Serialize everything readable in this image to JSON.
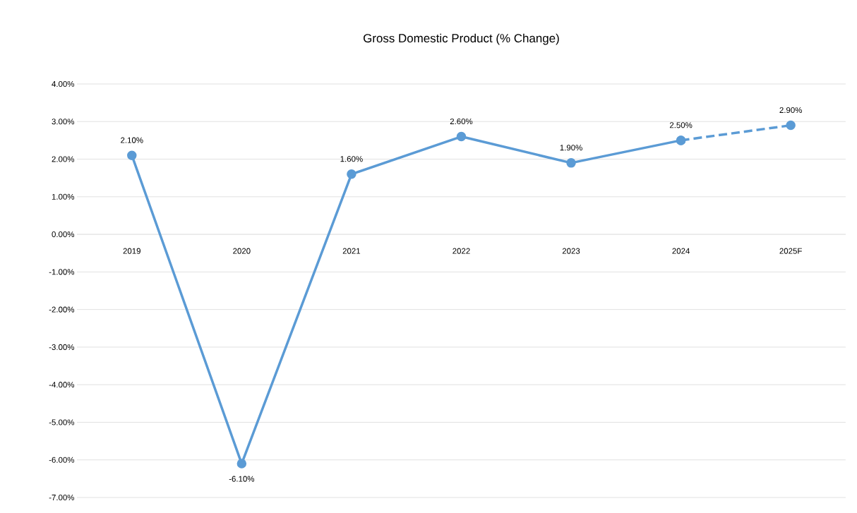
{
  "chart_data": {
    "type": "line",
    "title": "Gross Domestic Product (% Change)",
    "categories": [
      "2019",
      "2020",
      "2021",
      "2022",
      "2023",
      "2024",
      "2025F"
    ],
    "series": [
      {
        "color": "#5b9bd5",
        "line_style": "solid",
        "values": [
          2.1,
          -6.1,
          1.6,
          2.6,
          1.9,
          2.5,
          null
        ],
        "value_labels": [
          "2.10%",
          "-6.10%",
          "1.60%",
          "2.60%",
          "1.90%",
          "2.50%",
          null
        ]
      },
      {
        "color": "#5b9bd5",
        "line_style": "dashed",
        "values": [
          null,
          null,
          null,
          null,
          null,
          2.5,
          2.9
        ],
        "value_labels": [
          null,
          null,
          null,
          null,
          null,
          null,
          "2.90%"
        ]
      }
    ],
    "ylim": [
      -7,
      4
    ],
    "yticks": [
      {
        "value": -7,
        "label": "-7.00%"
      },
      {
        "value": -6,
        "label": "-6.00%"
      },
      {
        "value": -5,
        "label": "-5.00%"
      },
      {
        "value": -4,
        "label": "-4.00%"
      },
      {
        "value": -3,
        "label": "-3.00%"
      },
      {
        "value": -2,
        "label": "-2.00%"
      },
      {
        "value": -1,
        "label": "-1.00%"
      },
      {
        "value": 0,
        "label": "0.00%"
      },
      {
        "value": 1,
        "label": "1.00%"
      },
      {
        "value": 2,
        "label": "2.00%"
      },
      {
        "value": 3,
        "label": "3.00%"
      },
      {
        "value": 4,
        "label": "4.00%"
      }
    ],
    "grid": "y",
    "marker": "circle"
  }
}
